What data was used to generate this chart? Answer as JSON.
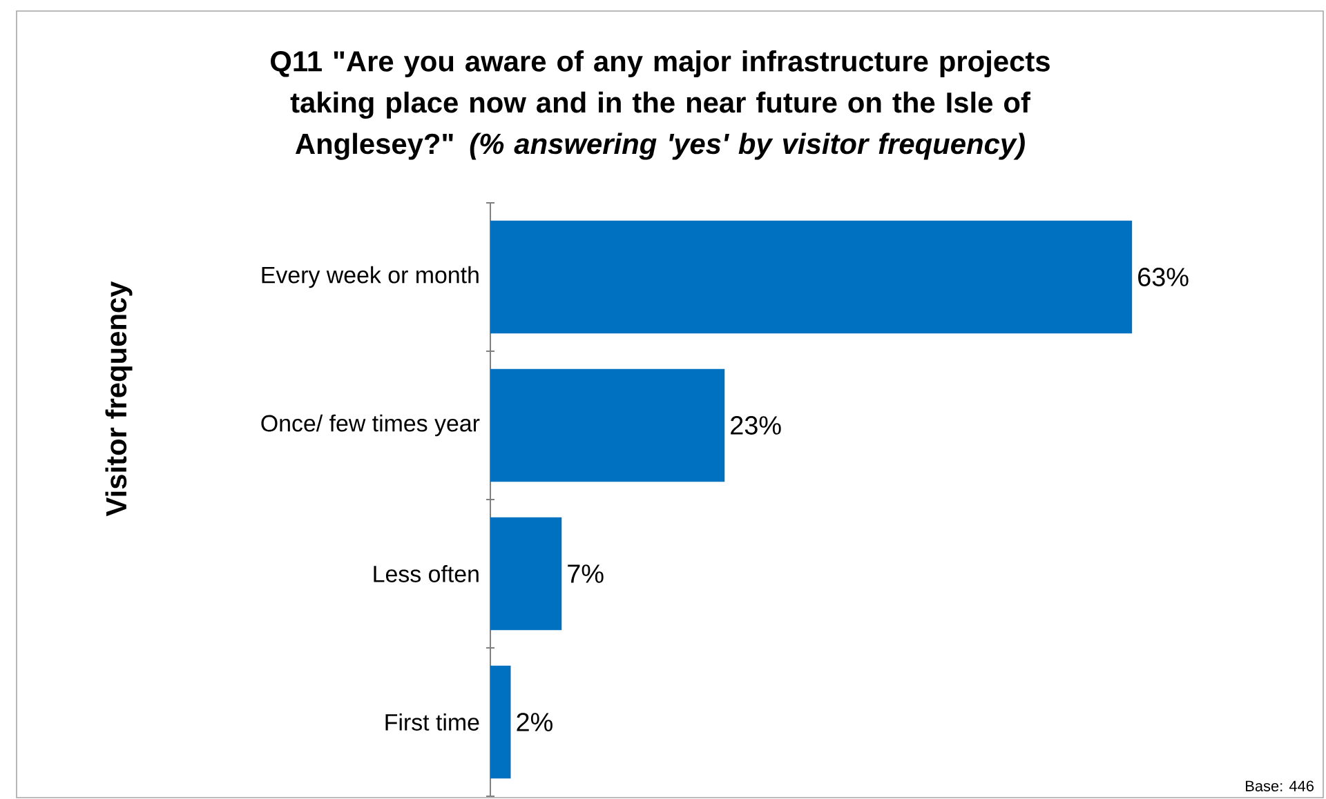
{
  "chart_data": {
    "type": "bar",
    "orientation": "horizontal",
    "title": "Q11 \"Are you aware of any major infrastructure projects taking place now and in the near future on the Isle of Anglesey?\" *(% answering 'yes' by visitor frequency)*",
    "ylabel": "Visitor frequency",
    "categories": [
      "Every week or month",
      "Once/ few times year",
      "Less often",
      "First time"
    ],
    "values": [
      63,
      23,
      7,
      2
    ],
    "value_labels": [
      "63%",
      "23%",
      "7%",
      "2%"
    ],
    "color": "#0070c0",
    "annotations": [
      "Base: 446"
    ]
  }
}
